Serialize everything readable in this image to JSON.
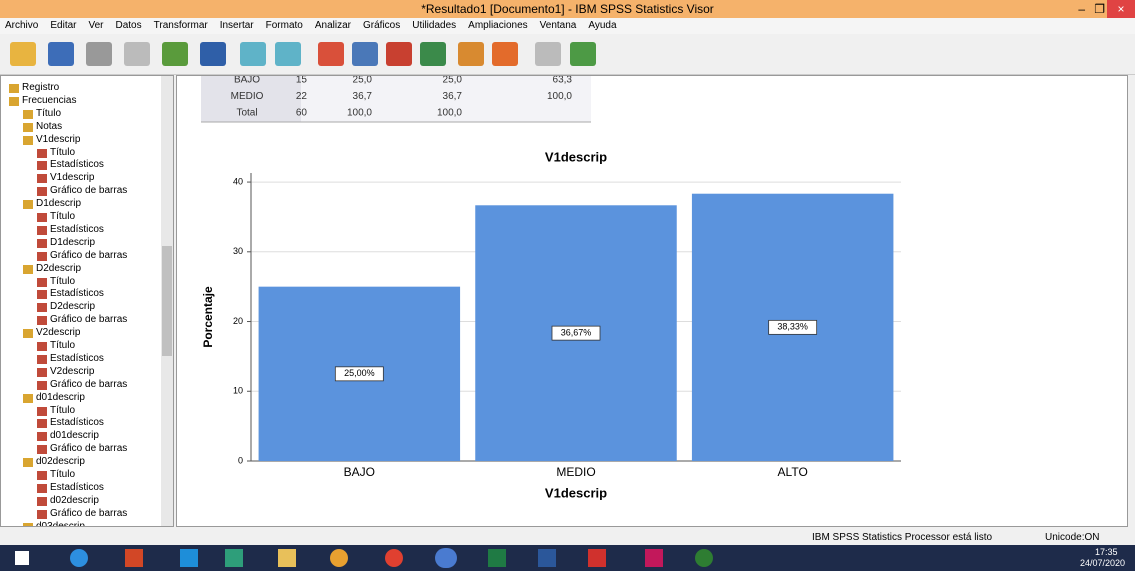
{
  "window": {
    "title": "*Resultado1 [Documento1] - IBM SPSS Statistics Visor"
  },
  "menu": [
    "Archivo",
    "Editar",
    "Ver",
    "Datos",
    "Transformar",
    "Insertar",
    "Formato",
    "Analizar",
    "Gráficos",
    "Utilidades",
    "Ampliaciones",
    "Ventana",
    "Ayuda"
  ],
  "tree": [
    {
      "label": "Registro",
      "level": 0
    },
    {
      "label": "Frecuencias",
      "level": 0
    },
    {
      "label": "Título",
      "level": 1
    },
    {
      "label": "Notas",
      "level": 1
    },
    {
      "label": "V1descrip",
      "level": 1
    },
    {
      "label": "Título",
      "level": 2
    },
    {
      "label": "Estadísticos",
      "level": 2
    },
    {
      "label": "V1descrip",
      "level": 2
    },
    {
      "label": "Gráfico de barras",
      "level": 2
    },
    {
      "label": "D1descrip",
      "level": 1
    },
    {
      "label": "Título",
      "level": 2
    },
    {
      "label": "Estadísticos",
      "level": 2
    },
    {
      "label": "D1descrip",
      "level": 2
    },
    {
      "label": "Gráfico de barras",
      "level": 2
    },
    {
      "label": "D2descrip",
      "level": 1
    },
    {
      "label": "Título",
      "level": 2
    },
    {
      "label": "Estadísticos",
      "level": 2
    },
    {
      "label": "D2descrip",
      "level": 2
    },
    {
      "label": "Gráfico de barras",
      "level": 2
    },
    {
      "label": "V2descrip",
      "level": 1
    },
    {
      "label": "Título",
      "level": 2
    },
    {
      "label": "Estadísticos",
      "level": 2
    },
    {
      "label": "V2descrip",
      "level": 2
    },
    {
      "label": "Gráfico de barras",
      "level": 2
    },
    {
      "label": "d01descrip",
      "level": 1
    },
    {
      "label": "Título",
      "level": 2
    },
    {
      "label": "Estadísticos",
      "level": 2
    },
    {
      "label": "d01descrip",
      "level": 2
    },
    {
      "label": "Gráfico de barras",
      "level": 2
    },
    {
      "label": "d02descrip",
      "level": 1
    },
    {
      "label": "Título",
      "level": 2
    },
    {
      "label": "Estadísticos",
      "level": 2
    },
    {
      "label": "d02descrip",
      "level": 2
    },
    {
      "label": "Gráfico de barras",
      "level": 2
    },
    {
      "label": "d03descrip",
      "level": 1
    }
  ],
  "table": {
    "rows": [
      [
        "BAJO",
        "15",
        "25,0",
        "25,0",
        "63,3"
      ],
      [
        "MEDIO",
        "22",
        "36,7",
        "36,7",
        "100,0"
      ],
      [
        "Total",
        "60",
        "100,0",
        "100,0"
      ]
    ]
  },
  "chart_data": {
    "type": "bar",
    "title": "V1descrip",
    "x_label": "V1descrip",
    "y_label": "Porcentaje",
    "categories": [
      "BAJO",
      "MEDIO",
      "ALTO"
    ],
    "values": [
      25,
      36.67,
      38.33
    ],
    "value_labels": [
      "25,00%",
      "36,67%",
      "38,33%"
    ],
    "color": "#5b93dd",
    "ylim": [
      0,
      41.3
    ],
    "yticks": [
      0,
      10,
      20,
      30,
      40
    ],
    "grid": true
  },
  "status": {
    "message": "IBM SPSS Statistics Processor está listo",
    "encoding": "Unicode:ON"
  },
  "taskbar": {
    "time": "17:35",
    "date": "24/07/2020"
  }
}
